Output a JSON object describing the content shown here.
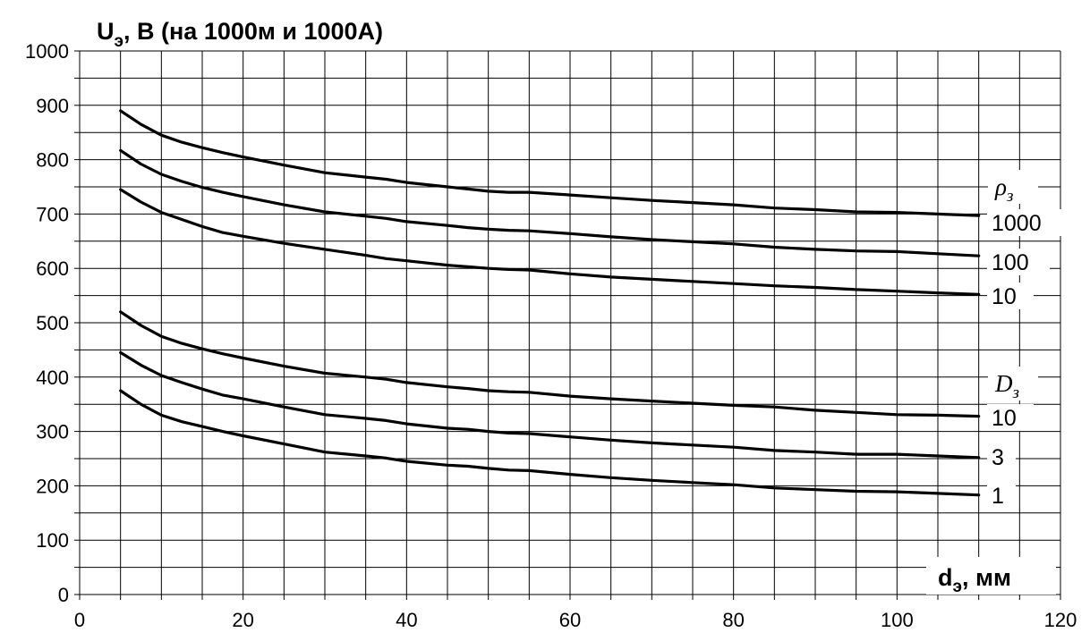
{
  "chart_data": {
    "type": "line",
    "ylabel_main": "U",
    "ylabel_sub": "э",
    "ylabel_rest": ", В (на 1000м и 1000А)",
    "xlabel_main": "d",
    "xlabel_sub": "э",
    "xlabel_rest": ", мм",
    "xlim": [
      0,
      120
    ],
    "ylim": [
      0,
      1000
    ],
    "x_ticks": [
      "0",
      "20",
      "40",
      "60",
      "80",
      "100",
      "120"
    ],
    "y_ticks": [
      "0",
      "100",
      "200",
      "300",
      "400",
      "500",
      "600",
      "700",
      "800",
      "900",
      "1000"
    ],
    "grid": true,
    "groups": [
      {
        "symbol": "ρ",
        "sub": "з"
      },
      {
        "symbol": "D",
        "sub": "з"
      }
    ],
    "x": [
      5,
      7.5,
      10,
      12.5,
      15,
      17.5,
      20,
      25,
      30,
      35,
      37.5,
      40,
      45,
      47.5,
      50,
      52.5,
      55,
      60,
      65,
      70,
      75,
      80,
      85,
      90,
      95,
      100,
      105,
      110
    ],
    "series": [
      {
        "name": "1000",
        "values": [
          890,
          865,
          845,
          832,
          822,
          813,
          805,
          790,
          776,
          768,
          764,
          758,
          750,
          746,
          742,
          740,
          740,
          735,
          730,
          725,
          721,
          717,
          711,
          708,
          704,
          703,
          700,
          697
        ]
      },
      {
        "name": "100",
        "values": [
          817,
          792,
          773,
          760,
          749,
          740,
          732,
          717,
          704,
          696,
          692,
          686,
          679,
          675,
          672,
          670,
          669,
          664,
          658,
          653,
          649,
          645,
          639,
          635,
          632,
          631,
          627,
          623
        ]
      },
      {
        "name": "10",
        "values": [
          745,
          722,
          703,
          690,
          677,
          666,
          659,
          646,
          635,
          624,
          618,
          614,
          606,
          603,
          600,
          598,
          597,
          590,
          584,
          580,
          576,
          572,
          568,
          565,
          561,
          558,
          555,
          552
        ]
      },
      {
        "name": "10",
        "values": [
          520,
          495,
          475,
          462,
          452,
          443,
          435,
          420,
          407,
          400,
          396,
          390,
          382,
          379,
          375,
          373,
          372,
          365,
          360,
          356,
          352,
          348,
          345,
          339,
          335,
          331,
          330,
          328
        ]
      },
      {
        "name": "3",
        "values": [
          445,
          422,
          403,
          390,
          378,
          367,
          360,
          345,
          331,
          324,
          320,
          314,
          306,
          304,
          300,
          297,
          296,
          290,
          284,
          279,
          275,
          271,
          265,
          262,
          258,
          258,
          255,
          252
        ]
      },
      {
        "name": "1",
        "values": [
          375,
          350,
          330,
          318,
          309,
          300,
          292,
          277,
          262,
          255,
          251,
          245,
          238,
          236,
          232,
          229,
          228,
          221,
          215,
          210,
          206,
          202,
          196,
          193,
          190,
          189,
          186,
          183
        ]
      }
    ]
  }
}
